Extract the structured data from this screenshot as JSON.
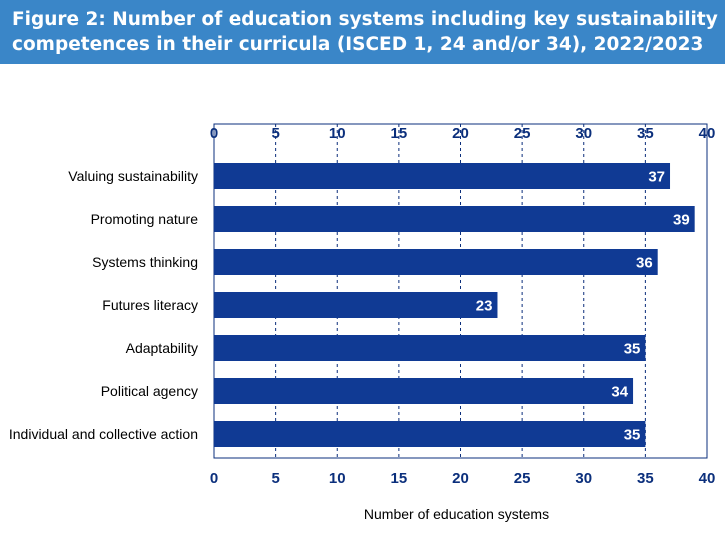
{
  "title": {
    "line1": "Figure 2: Number of education systems including key sustainability",
    "line2": "competences in their curricula (ISCED 1, 24 and/or 34), 2022/2023"
  },
  "colors": {
    "banner": "#3a86c8",
    "bar": "#103a94",
    "tick_text": "#0b2f7c",
    "value_text": "#ffffff",
    "frame": "#0b2f7c",
    "grid": "#0b2f7c"
  },
  "chart_data": {
    "type": "bar",
    "orientation": "horizontal",
    "categories": [
      "Valuing sustainability",
      "Promoting nature",
      "Systems thinking",
      "Futures literacy",
      "Adaptability",
      "Political agency",
      "Individual and collective action"
    ],
    "values": [
      37,
      39,
      36,
      23,
      35,
      34,
      35
    ],
    "xlabel": "Number of education systems",
    "ylabel": "",
    "xlim": [
      0,
      40
    ],
    "ticks": [
      0,
      5,
      10,
      15,
      20,
      25,
      30,
      35,
      40
    ],
    "grid": "vertical dashed",
    "axis_ticks_position": "top and bottom",
    "legend": "none"
  }
}
